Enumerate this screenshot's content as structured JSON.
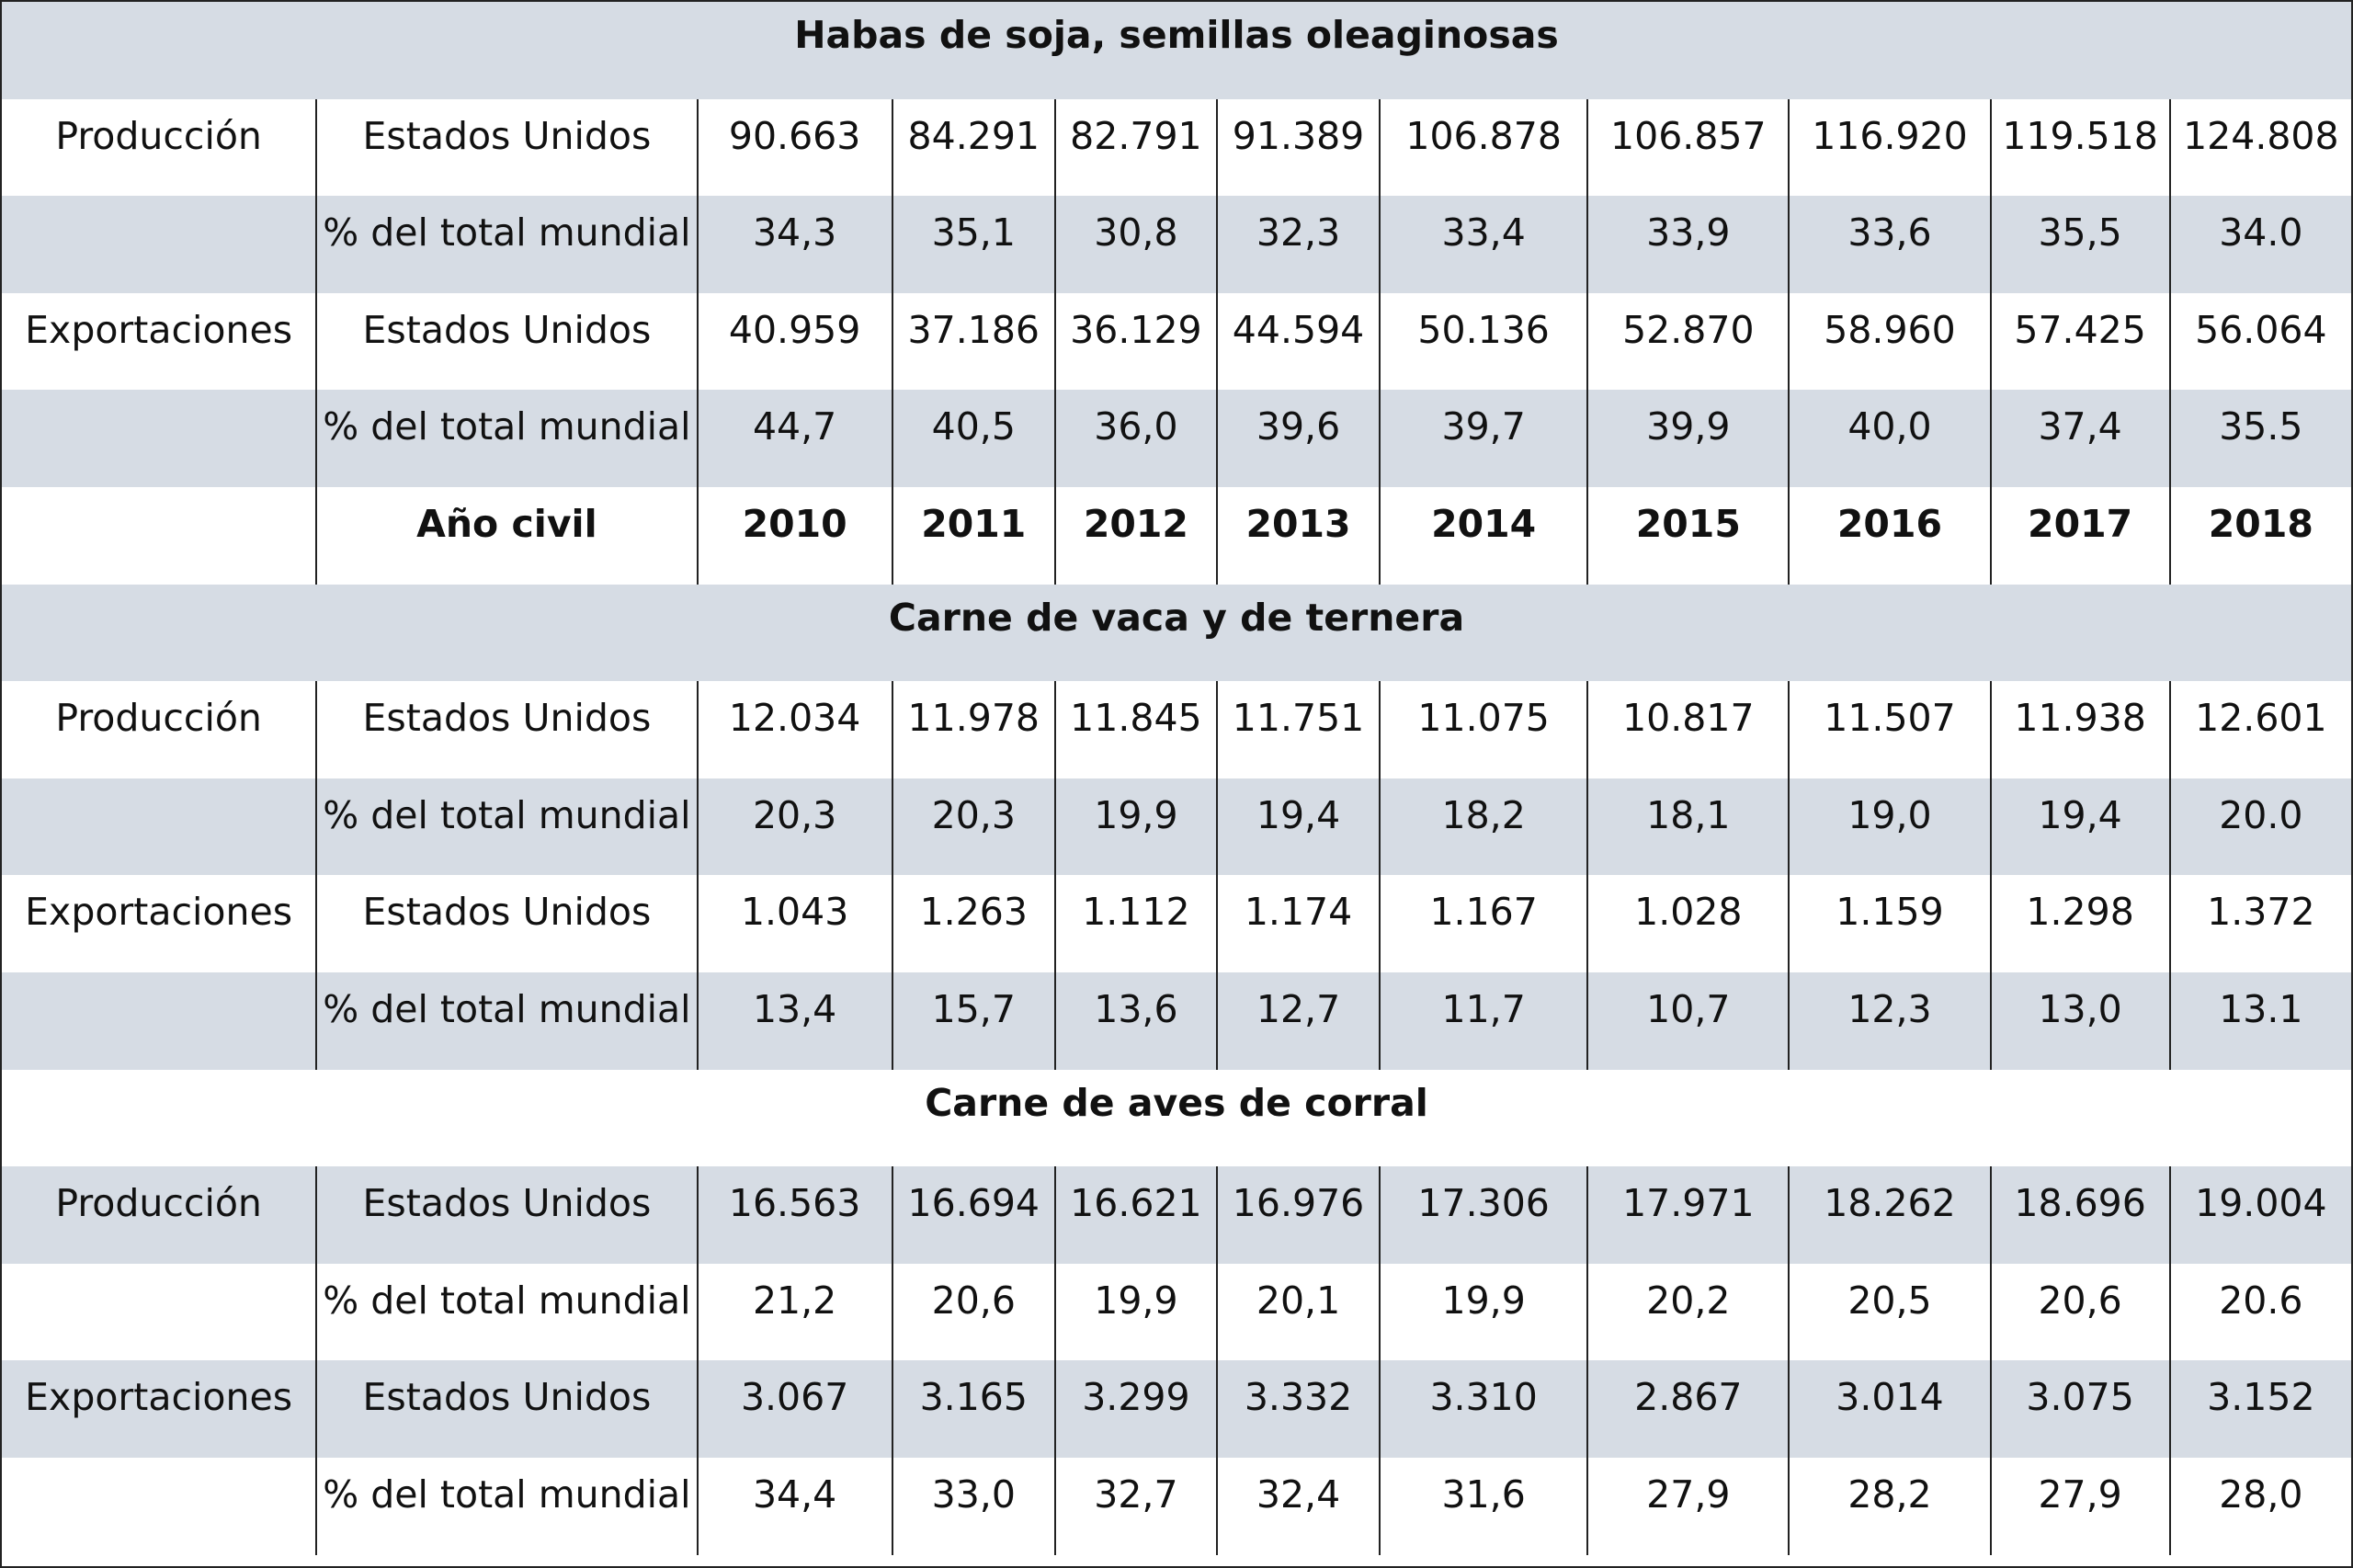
{
  "sections": [
    {
      "title": "Habas de soja, semillas oleaginosas",
      "rows": [
        {
          "label": "Producción",
          "sub": "Estados Unidos",
          "values": [
            "90.663",
            "84.291",
            "82.791",
            "91.389",
            "106.878",
            "106.857",
            "116.920",
            "119.518",
            "124.808"
          ]
        },
        {
          "label": "",
          "sub": "% del total mundial",
          "values": [
            "34,3",
            "35,1",
            "30,8",
            "32,3",
            "33,4",
            "33,9",
            "33,6",
            "35,5",
            "34.0"
          ]
        },
        {
          "label": "Exportaciones",
          "sub": "Estados Unidos",
          "values": [
            "40.959",
            "37.186",
            "36.129",
            "44.594",
            "50.136",
            "52.870",
            "58.960",
            "57.425",
            "56.064"
          ]
        },
        {
          "label": "",
          "sub": "% del total mundial",
          "values": [
            "44,7",
            "40,5",
            "36,0",
            "39,6",
            "39,7",
            "39,9",
            "40,0",
            "37,4",
            "35.5"
          ]
        }
      ]
    },
    {
      "title": "Carne de vaca y de ternera",
      "rows": [
        {
          "label": "Producción",
          "sub": "Estados Unidos",
          "values": [
            "12.034",
            "11.978",
            "11.845",
            "11.751",
            "11.075",
            "10.817",
            "11.507",
            "11.938",
            "12.601"
          ]
        },
        {
          "label": "",
          "sub": "% del total mundial",
          "values": [
            "20,3",
            "20,3",
            "19,9",
            "19,4",
            "18,2",
            "18,1",
            "19,0",
            "19,4",
            "20.0"
          ]
        },
        {
          "label": "Exportaciones",
          "sub": "Estados Unidos",
          "values": [
            "1.043",
            "1.263",
            "1.112",
            "1.174",
            "1.167",
            "1.028",
            "1.159",
            "1.298",
            "1.372"
          ]
        },
        {
          "label": "",
          "sub": "% del total mundial",
          "values": [
            "13,4",
            "15,7",
            "13,6",
            "12,7",
            "11,7",
            "10,7",
            "12,3",
            "13,0",
            "13.1"
          ]
        }
      ]
    },
    {
      "title": "Carne de aves de corral",
      "rows": [
        {
          "label": "Producción",
          "sub": "Estados Unidos",
          "values": [
            "16.563",
            "16.694",
            "16.621",
            "16.976",
            "17.306",
            "17.971",
            "18.262",
            "18.696",
            "19.004"
          ]
        },
        {
          "label": "",
          "sub": "% del total mundial",
          "values": [
            "21,2",
            "20,6",
            "19,9",
            "20,1",
            "19,9",
            "20,2",
            "20,5",
            "20,6",
            "20.6"
          ]
        },
        {
          "label": "Exportaciones",
          "sub": "Estados Unidos",
          "values": [
            "3.067",
            "3.165",
            "3.299",
            "3.332",
            "3.310",
            "2.867",
            "3.014",
            "3.075",
            "3.152"
          ]
        },
        {
          "label": "",
          "sub": "% del total mundial",
          "values": [
            "34,4",
            "33,0",
            "32,7",
            "32,4",
            "31,6",
            "27,9",
            "28,2",
            "27,9",
            "28,0"
          ]
        }
      ]
    }
  ],
  "year_row": {
    "label": "Año civil",
    "years": [
      "2010",
      "2011",
      "2012",
      "2013",
      "2014",
      "2015",
      "2016",
      "2017",
      "2018"
    ]
  },
  "colors": {
    "shade": "#d6dce4",
    "border": "#222222"
  }
}
